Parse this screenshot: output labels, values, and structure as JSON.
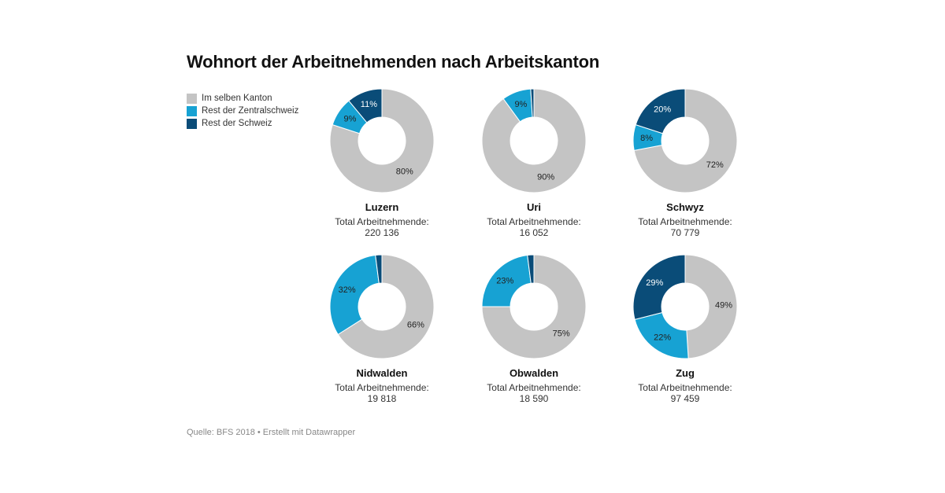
{
  "title": "Wohnort der Arbeitnehmenden nach Arbeitskanton",
  "legend": [
    {
      "label": "Im selben Kanton",
      "color": "#c4c4c4"
    },
    {
      "label": "Rest der Zentralschweiz",
      "color": "#17a2d3"
    },
    {
      "label": "Rest der Schweiz",
      "color": "#0a4c78"
    }
  ],
  "total_label": "Total Arbeitnehmende:",
  "source": "Quelle: BFS 2018 • Erstellt mit Datawrapper",
  "chart_data": {
    "type": "pie",
    "variant": "donut",
    "title": "Wohnort der Arbeitnehmenden nach Arbeitskanton",
    "series_names": [
      "Im selben Kanton",
      "Rest der Zentralschweiz",
      "Rest der Schweiz"
    ],
    "unit": "%",
    "panels": [
      {
        "name": "Luzern",
        "total": "220 136",
        "values": [
          80,
          9,
          11
        ],
        "labels": [
          "80%",
          "9%",
          "11%"
        ]
      },
      {
        "name": "Uri",
        "total": "16 052",
        "values": [
          90,
          9,
          1
        ],
        "labels": [
          "90%",
          "9%",
          ""
        ]
      },
      {
        "name": "Schwyz",
        "total": "70 779",
        "values": [
          72,
          8,
          20
        ],
        "labels": [
          "72%",
          "8%",
          "20%"
        ]
      },
      {
        "name": "Nidwalden",
        "total": "19 818",
        "values": [
          66,
          32,
          2
        ],
        "labels": [
          "66%",
          "32%",
          ""
        ]
      },
      {
        "name": "Obwalden",
        "total": "18 590",
        "values": [
          75,
          23,
          2
        ],
        "labels": [
          "75%",
          "23%",
          ""
        ]
      },
      {
        "name": "Zug",
        "total": "97 459",
        "values": [
          49,
          22,
          29
        ],
        "labels": [
          "49%",
          "22%",
          "29%"
        ]
      }
    ]
  }
}
